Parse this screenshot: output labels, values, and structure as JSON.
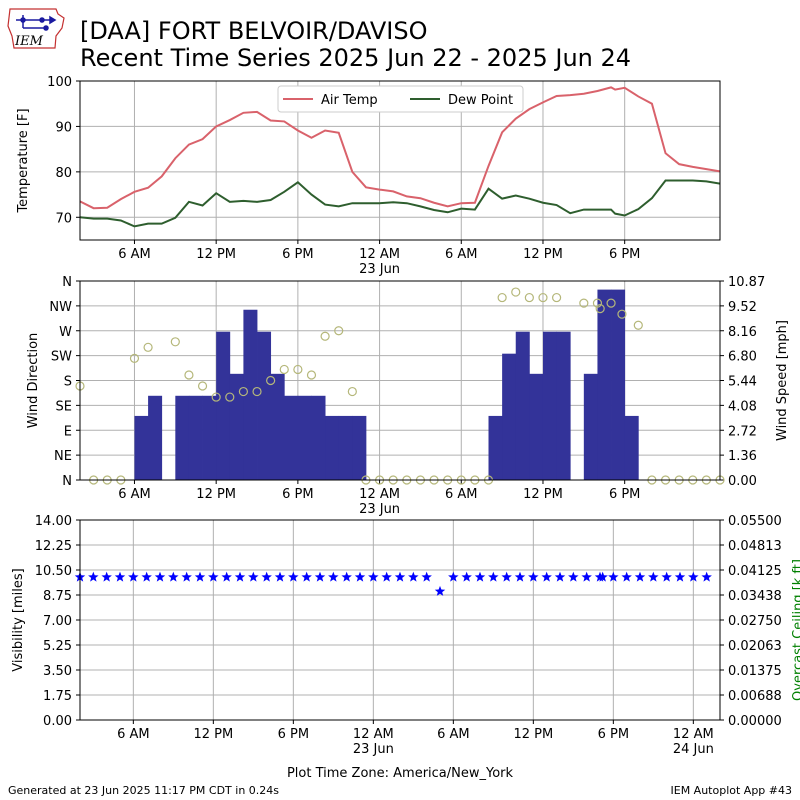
{
  "header": {
    "title_line1": "[DAA] FORT BELVOIR/DAVISO",
    "title_line2": "Recent Time Series 2025 Jun 22 - 2025 Jun 24",
    "logo_text": "IEM"
  },
  "footer": {
    "generated": "Generated at 23 Jun 2025 11:17 PM CDT in 0.24s",
    "app": "IEM Autoplot App #43"
  },
  "chart_data": [
    {
      "type": "line",
      "ylabel": "Temperature [F]",
      "ylim": [
        65,
        100
      ],
      "yticks": [
        70,
        80,
        90,
        100
      ],
      "xlim": [
        2,
        49
      ],
      "xticks": [
        6,
        12,
        18,
        24,
        30,
        36,
        42
      ],
      "xtick_labels": [
        "6 AM",
        "12 PM",
        "6 PM",
        "12 AM\n23 Jun",
        "6 AM",
        "12 PM",
        "6 PM"
      ],
      "grid": true,
      "legend": "top-center",
      "series": [
        {
          "name": "Air Temp",
          "color": "#d9626b",
          "x": [
            2,
            3,
            4,
            5,
            6,
            7,
            8,
            9,
            10,
            11,
            12,
            13,
            14,
            15,
            16,
            17,
            18,
            19,
            20,
            21,
            22,
            23,
            24,
            25,
            26,
            27,
            28,
            29,
            30,
            31,
            32,
            33,
            34,
            35,
            36,
            37,
            38,
            39,
            40,
            41,
            41.3,
            42,
            43,
            44,
            45,
            46,
            47,
            48,
            49
          ],
          "y": [
            73.5,
            72,
            72.1,
            74,
            75.6,
            76.5,
            79,
            83,
            86,
            87.2,
            90,
            91.4,
            93,
            93.2,
            91.3,
            91.1,
            89.1,
            87.5,
            89.1,
            88.6,
            80,
            76.6,
            76.1,
            75.7,
            74.6,
            74.2,
            73.2,
            72.4,
            73.1,
            73.2,
            81.3,
            88.7,
            91.7,
            93.8,
            95.3,
            96.7,
            96.9,
            97.2,
            97.8,
            98.6,
            98.1,
            98.5,
            96.6,
            95,
            84.1,
            81.7,
            81.1,
            80.6,
            80.1
          ]
        },
        {
          "name": "Dew Point",
          "color": "#2e5e2e",
          "x": [
            2,
            3,
            4,
            5,
            6,
            7,
            8,
            9,
            10,
            11,
            12,
            13,
            14,
            15,
            16,
            17,
            18,
            19,
            20,
            21,
            22,
            23,
            24,
            25,
            26,
            27,
            28,
            29,
            30,
            31,
            32,
            33,
            34,
            35,
            36,
            37,
            38,
            39,
            40,
            41,
            41.3,
            42,
            43,
            44,
            45,
            46,
            47,
            48,
            49
          ],
          "y": [
            70,
            69.7,
            69.7,
            69.3,
            68,
            68.6,
            68.6,
            69.9,
            73.4,
            72.6,
            75.3,
            73.4,
            73.6,
            73.4,
            73.8,
            75.6,
            77.7,
            75,
            72.8,
            72.4,
            73.1,
            73.1,
            73.1,
            73.3,
            73.1,
            72.4,
            71.6,
            71.1,
            71.9,
            71.7,
            76.3,
            74.1,
            74.8,
            74.1,
            73.2,
            72.7,
            70.9,
            71.7,
            71.7,
            71.7,
            70.8,
            70.4,
            71.8,
            74.2,
            78.1,
            78.1,
            78.1,
            77.9,
            77.4
          ]
        }
      ]
    },
    {
      "type": "bar",
      "ylabel": "Wind Direction",
      "y2label": "Wind Speed [mph]",
      "xlim": [
        2,
        49
      ],
      "xticks": [
        6,
        12,
        18,
        24,
        30,
        36,
        42
      ],
      "xtick_labels": [
        "6 AM",
        "12 PM",
        "6 PM",
        "12 AM\n23 Jun",
        "6 AM",
        "12 PM",
        "6 PM"
      ],
      "direction_ticks": [
        "N",
        "NE",
        "E",
        "SE",
        "S",
        "SW",
        "W",
        "NW",
        "N"
      ],
      "direction_range": [
        0,
        360
      ],
      "speed_ticks": [
        "0.00",
        "1.36",
        "2.72",
        "4.08",
        "5.44",
        "6.80",
        "8.16",
        "9.52",
        "10.87"
      ],
      "speed_range": [
        0,
        10.87
      ],
      "grid": true,
      "series": [
        {
          "name": "Wind Speed",
          "color": "#333399",
          "x": [
            2,
            3,
            4,
            5,
            6,
            7,
            8,
            9,
            10,
            11,
            12,
            13,
            14,
            15,
            16,
            17,
            18,
            19,
            20,
            21,
            22,
            23,
            24,
            25,
            26,
            27,
            28,
            29,
            30,
            31,
            32,
            33,
            34,
            35,
            36,
            37,
            38,
            39,
            40,
            41,
            42,
            43,
            44,
            45,
            46,
            47,
            48
          ],
          "values": [
            0,
            0,
            0,
            0,
            3.5,
            4.6,
            0,
            4.6,
            4.6,
            4.6,
            8.1,
            5.8,
            9.3,
            8.1,
            5.8,
            4.6,
            4.6,
            4.6,
            3.5,
            3.5,
            3.5,
            0,
            0,
            0,
            0,
            0,
            0,
            0,
            0,
            0,
            3.5,
            6.9,
            8.1,
            5.8,
            8.1,
            8.1,
            0,
            5.8,
            10.4,
            10.4,
            3.5,
            0,
            0,
            0,
            0,
            0,
            0
          ]
        },
        {
          "name": "Wind Direction",
          "color": "#b5b77a",
          "marker": "circle",
          "x": [
            2,
            3,
            4,
            5,
            6,
            7,
            9,
            10,
            11,
            12,
            13,
            14,
            15,
            16,
            17,
            18,
            19,
            20,
            21,
            22,
            23,
            24,
            25,
            26,
            27,
            28,
            29,
            30,
            31,
            32,
            33,
            34,
            35,
            36,
            37,
            39,
            40,
            40.2,
            41,
            41.8,
            43,
            44,
            45,
            46,
            47,
            48,
            49
          ],
          "values": [
            170,
            0,
            0,
            0,
            220,
            240,
            250,
            190,
            170,
            150,
            150,
            160,
            160,
            180,
            200,
            200,
            190,
            260,
            270,
            160,
            0,
            0,
            0,
            0,
            0,
            0,
            0,
            0,
            0,
            0,
            330,
            340,
            330,
            330,
            330,
            320,
            320,
            310,
            320,
            300,
            280,
            0,
            0,
            0,
            0,
            0,
            0
          ]
        }
      ]
    },
    {
      "type": "scatter",
      "ylabel": "Visibility [miles]",
      "y2label": "Overcast Ceiling [k ft]",
      "y2color": "#008000",
      "ylim": [
        0,
        14
      ],
      "yticks": [
        "0.00",
        "1.75",
        "3.50",
        "5.25",
        "7.00",
        "8.75",
        "10.50",
        "12.25",
        "14.00"
      ],
      "y2ticks": [
        "0.00000",
        "0.00688",
        "0.01375",
        "0.02063",
        "0.02750",
        "0.03438",
        "0.04125",
        "0.04813",
        "0.05500"
      ],
      "xlim": [
        2,
        50
      ],
      "xticks": [
        6,
        12,
        18,
        24,
        30,
        36,
        42,
        48
      ],
      "xtick_labels": [
        "6 AM",
        "12 PM",
        "6 PM",
        "12 AM\n23 Jun",
        "6 AM",
        "12 PM",
        "6 PM",
        "12 AM\n24 Jun"
      ],
      "xlabel": "Plot Time Zone: America/New_York",
      "grid": true,
      "series": [
        {
          "name": "Visibility",
          "color": "#0000ff",
          "marker": "star",
          "x": [
            2,
            3,
            4,
            5,
            6,
            7,
            8,
            9,
            10,
            11,
            12,
            13,
            14,
            15,
            16,
            17,
            18,
            19,
            20,
            21,
            22,
            23,
            24,
            25,
            26,
            27,
            28,
            29,
            30,
            31,
            32,
            33,
            34,
            35,
            36,
            37,
            38,
            39,
            40,
            41,
            41.2,
            42,
            43,
            44,
            45,
            46,
            47,
            48,
            49
          ],
          "y": [
            10,
            10,
            10,
            10,
            10,
            10,
            10,
            10,
            10,
            10,
            10,
            10,
            10,
            10,
            10,
            10,
            10,
            10,
            10,
            10,
            10,
            10,
            10,
            10,
            10,
            10,
            10,
            9,
            10,
            10,
            10,
            10,
            10,
            10,
            10,
            10,
            10,
            10,
            10,
            10,
            10,
            10,
            10,
            10,
            10,
            10,
            10,
            10,
            10
          ]
        }
      ]
    }
  ]
}
